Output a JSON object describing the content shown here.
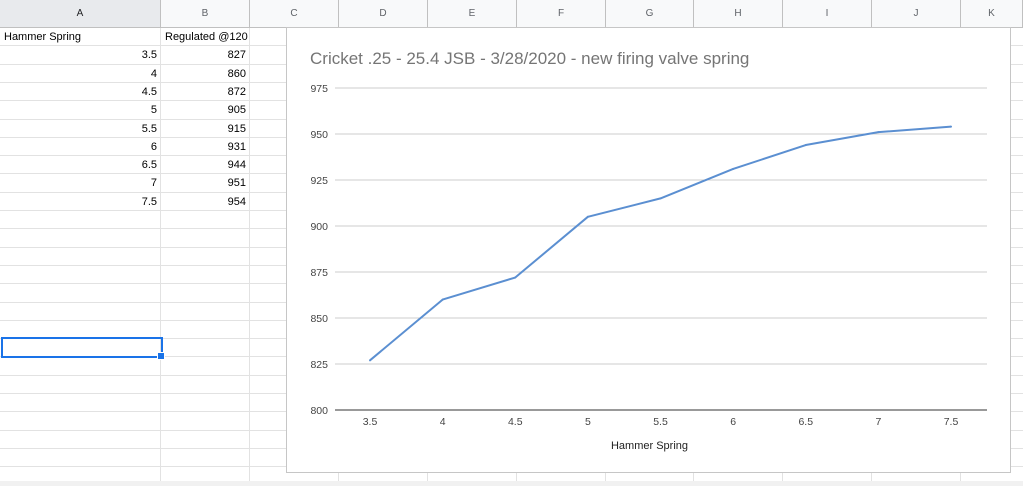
{
  "columns": [
    "A",
    "B",
    "C",
    "D",
    "E",
    "F",
    "G",
    "H",
    "I",
    "J",
    "K"
  ],
  "sheet": {
    "header_a": "Hammer Spring",
    "header_b": "Regulated @120",
    "rows": [
      {
        "a": "3.5",
        "b": "827"
      },
      {
        "a": "4",
        "b": "860"
      },
      {
        "a": "4.5",
        "b": "872"
      },
      {
        "a": "5",
        "b": "905"
      },
      {
        "a": "5.5",
        "b": "915"
      },
      {
        "a": "6",
        "b": "931"
      },
      {
        "a": "6.5",
        "b": "944"
      },
      {
        "a": "7",
        "b": "951"
      },
      {
        "a": "7.5",
        "b": "954"
      }
    ]
  },
  "chart_data": {
    "type": "line",
    "title": "Cricket .25 - 25.4 JSB - 3/28/2020 - new firing valve spring",
    "xlabel": "Hammer Spring",
    "ylabel": "",
    "categories": [
      "3.5",
      "4",
      "4.5",
      "5",
      "5.5",
      "6",
      "6.5",
      "7",
      "7.5"
    ],
    "series": [
      {
        "values": [
          827,
          860,
          872,
          905,
          915,
          931,
          944,
          951,
          954
        ],
        "color": "#5b8fd1"
      }
    ],
    "ylim": [
      800,
      975
    ],
    "yticks": [
      "800",
      "825",
      "850",
      "875",
      "900",
      "925",
      "950",
      "975"
    ],
    "grid": true,
    "legend": "none"
  },
  "colors": {
    "selection": "#1a73e8",
    "gridline": "#e2e2e2",
    "line": "#5b8fd1"
  }
}
